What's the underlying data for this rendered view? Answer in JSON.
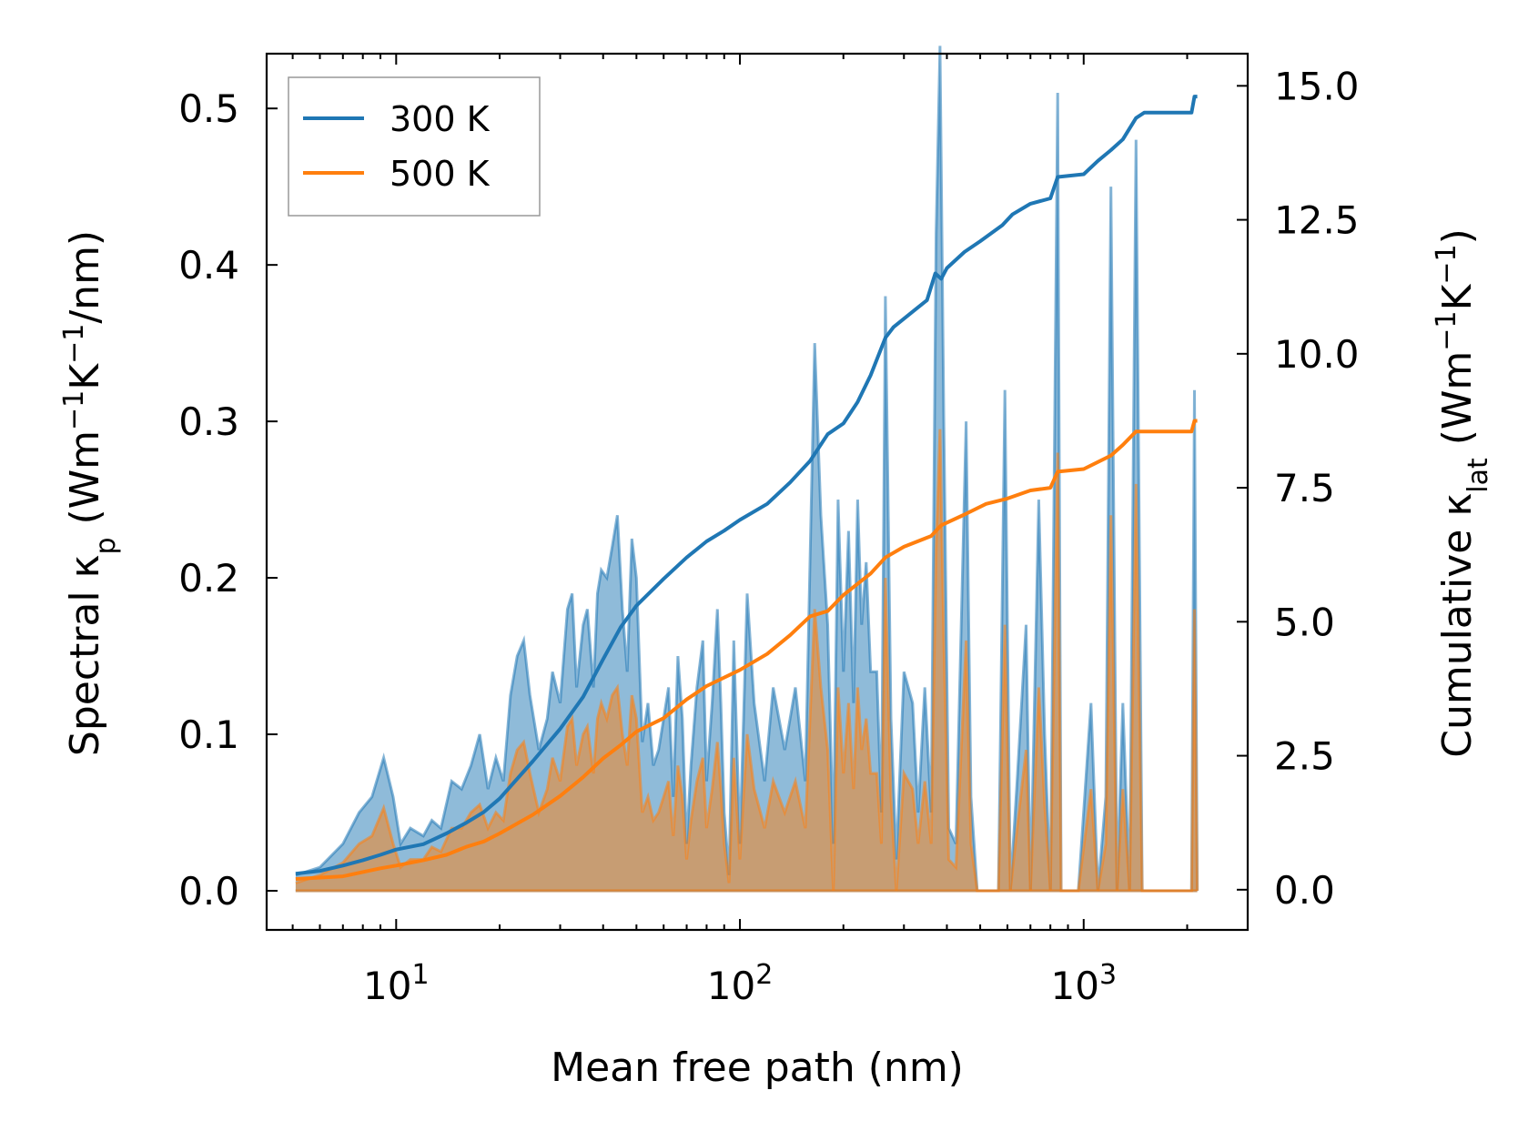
{
  "chart_data": {
    "type": "area",
    "xlabel": "Mean free path (nm)",
    "xscale": "log",
    "xlim": [
      4.2,
      3000
    ],
    "x_ticks": [
      {
        "value": 10,
        "base": "10",
        "exp": "1"
      },
      {
        "value": 100,
        "base": "10",
        "exp": "2"
      },
      {
        "value": 1000,
        "base": "10",
        "exp": "3"
      }
    ],
    "ylabel_left": {
      "main": "Spectral κ",
      "sub": "p",
      "unit_a": " (Wm",
      "exp1": "−1",
      "unit_b": "K",
      "exp2": "−1",
      "unit_c": "/nm)"
    },
    "ylim_left": [
      -0.025,
      0.535
    ],
    "yticks_left": [
      "0.0",
      "0.1",
      "0.2",
      "0.3",
      "0.4",
      "0.5"
    ],
    "ylabel_right": {
      "main": "Cumulative κ",
      "sub": "lat",
      "unit_a": " (Wm",
      "exp1": "−1",
      "unit_b": "K",
      "exp2": "−1",
      "unit_c": ")"
    },
    "ylim_right": [
      -0.75,
      15.6
    ],
    "yticks_right": [
      "0.0",
      "2.5",
      "5.0",
      "7.5",
      "10.0",
      "12.5",
      "15.0"
    ],
    "legend": {
      "position": "top-left",
      "entries": [
        {
          "label": "300 K",
          "color": "#1f77b4"
        },
        {
          "label": "500 K",
          "color": "#ff7f0e"
        }
      ]
    },
    "spectral_300K": {
      "name": "300 K spectral",
      "color": "#1f77b4",
      "points": [
        [
          5.1,
          0.01
        ],
        [
          6,
          0.015
        ],
        [
          7,
          0.03
        ],
        [
          7.8,
          0.05
        ],
        [
          8.5,
          0.06
        ],
        [
          9.2,
          0.085
        ],
        [
          9.8,
          0.06
        ],
        [
          10.3,
          0.03
        ],
        [
          11,
          0.04
        ],
        [
          12,
          0.035
        ],
        [
          12.7,
          0.045
        ],
        [
          13.5,
          0.04
        ],
        [
          14.5,
          0.07
        ],
        [
          15.5,
          0.065
        ],
        [
          16.5,
          0.08
        ],
        [
          17.5,
          0.1
        ],
        [
          18.5,
          0.065
        ],
        [
          19.5,
          0.085
        ],
        [
          20.5,
          0.07
        ],
        [
          21.5,
          0.125
        ],
        [
          22.5,
          0.15
        ],
        [
          23.5,
          0.16
        ],
        [
          24.5,
          0.125
        ],
        [
          26,
          0.09
        ],
        [
          27.5,
          0.11
        ],
        [
          28.5,
          0.14
        ],
        [
          30,
          0.12
        ],
        [
          31.5,
          0.18
        ],
        [
          32.5,
          0.19
        ],
        [
          33.5,
          0.13
        ],
        [
          35,
          0.17
        ],
        [
          36,
          0.18
        ],
        [
          37.5,
          0.13
        ],
        [
          38.5,
          0.19
        ],
        [
          39.5,
          0.205
        ],
        [
          41,
          0.2
        ],
        [
          42.5,
          0.22
        ],
        [
          44,
          0.24
        ],
        [
          45.5,
          0.18
        ],
        [
          47,
          0.14
        ],
        [
          48.5,
          0.225
        ],
        [
          50,
          0.2
        ],
        [
          52,
          0.095
        ],
        [
          54,
          0.12
        ],
        [
          56,
          0.08
        ],
        [
          58,
          0.09
        ],
        [
          60,
          0.11
        ],
        [
          62,
          0.13
        ],
        [
          64,
          0.06
        ],
        [
          66,
          0.15
        ],
        [
          68,
          0.11
        ],
        [
          70,
          0.03
        ],
        [
          72,
          0.08
        ],
        [
          75,
          0.13
        ],
        [
          78,
          0.16
        ],
        [
          80,
          0.07
        ],
        [
          83,
          0.12
        ],
        [
          86,
          0.18
        ],
        [
          88,
          0.12
        ],
        [
          90,
          0.05
        ],
        [
          93,
          0.01
        ],
        [
          96,
          0.16
        ],
        [
          100,
          0.03
        ],
        [
          105,
          0.19
        ],
        [
          110,
          0.12
        ],
        [
          118,
          0.07
        ],
        [
          125,
          0.13
        ],
        [
          135,
          0.09
        ],
        [
          145,
          0.13
        ],
        [
          155,
          0.07
        ],
        [
          165,
          0.35
        ],
        [
          172,
          0.24
        ],
        [
          180,
          0.17
        ],
        [
          187,
          0.03
        ],
        [
          193,
          0.25
        ],
        [
          200,
          0.14
        ],
        [
          207,
          0.23
        ],
        [
          214,
          0.12
        ],
        [
          220,
          0.25
        ],
        [
          226,
          0.17
        ],
        [
          233,
          0.21
        ],
        [
          240,
          0.14
        ],
        [
          250,
          0.14
        ],
        [
          258,
          0.05
        ],
        [
          265,
          0.38
        ],
        [
          275,
          0.11
        ],
        [
          285,
          0.02
        ],
        [
          300,
          0.14
        ],
        [
          318,
          0.12
        ],
        [
          330,
          0.05
        ],
        [
          345,
          0.13
        ],
        [
          360,
          0.05
        ],
        [
          372,
          0.42
        ],
        [
          382,
          0.54
        ],
        [
          392,
          0.3
        ],
        [
          405,
          0.04
        ],
        [
          425,
          0.03
        ],
        [
          455,
          0.3
        ],
        [
          470,
          0.06
        ],
        [
          490,
          0.0
        ],
        [
          515,
          0.0
        ],
        [
          545,
          0.0
        ],
        [
          565,
          0.0
        ],
        [
          590,
          0.32
        ],
        [
          612,
          0.0
        ],
        [
          640,
          0.07
        ],
        [
          680,
          0.17
        ],
        [
          700,
          0.0
        ],
        [
          740,
          0.25
        ],
        [
          770,
          0.1
        ],
        [
          800,
          0.0
        ],
        [
          840,
          0.51
        ],
        [
          860,
          0.0
        ],
        [
          905,
          0.0
        ],
        [
          965,
          0.0
        ],
        [
          1050,
          0.12
        ],
        [
          1100,
          0.0
        ],
        [
          1160,
          0.06
        ],
        [
          1200,
          0.45
        ],
        [
          1250,
          0.0
        ],
        [
          1300,
          0.12
        ],
        [
          1360,
          0.0
        ],
        [
          1420,
          0.48
        ],
        [
          1480,
          0.0
        ],
        [
          1550,
          0.0
        ],
        [
          2060,
          0.0
        ],
        [
          2100,
          0.32
        ],
        [
          2140,
          0.0
        ]
      ]
    },
    "spectral_500K": {
      "name": "500 K spectral",
      "color": "#ff7f0e",
      "points": [
        [
          5.1,
          0.005
        ],
        [
          6,
          0.01
        ],
        [
          7,
          0.018
        ],
        [
          7.8,
          0.03
        ],
        [
          8.5,
          0.035
        ],
        [
          9.2,
          0.053
        ],
        [
          9.8,
          0.03
        ],
        [
          10.3,
          0.015
        ],
        [
          11,
          0.02
        ],
        [
          12,
          0.02
        ],
        [
          12.7,
          0.028
        ],
        [
          13.5,
          0.025
        ],
        [
          14.5,
          0.04
        ],
        [
          15.5,
          0.04
        ],
        [
          16.5,
          0.05
        ],
        [
          17.5,
          0.055
        ],
        [
          18.5,
          0.04
        ],
        [
          19.5,
          0.05
        ],
        [
          20.5,
          0.045
        ],
        [
          21.5,
          0.075
        ],
        [
          22.5,
          0.09
        ],
        [
          23.5,
          0.095
        ],
        [
          24.5,
          0.075
        ],
        [
          26,
          0.05
        ],
        [
          27.5,
          0.065
        ],
        [
          28.5,
          0.085
        ],
        [
          30,
          0.07
        ],
        [
          31.5,
          0.105
        ],
        [
          32.5,
          0.11
        ],
        [
          33.5,
          0.08
        ],
        [
          35,
          0.1
        ],
        [
          36,
          0.105
        ],
        [
          37.5,
          0.075
        ],
        [
          38.5,
          0.11
        ],
        [
          39.5,
          0.12
        ],
        [
          41,
          0.11
        ],
        [
          42.5,
          0.125
        ],
        [
          44,
          0.13
        ],
        [
          45.5,
          0.1
        ],
        [
          47,
          0.08
        ],
        [
          48.5,
          0.125
        ],
        [
          50,
          0.11
        ],
        [
          52,
          0.05
        ],
        [
          54,
          0.06
        ],
        [
          56,
          0.045
        ],
        [
          58,
          0.05
        ],
        [
          60,
          0.06
        ],
        [
          62,
          0.07
        ],
        [
          64,
          0.035
        ],
        [
          66,
          0.08
        ],
        [
          68,
          0.06
        ],
        [
          70,
          0.02
        ],
        [
          72,
          0.045
        ],
        [
          75,
          0.07
        ],
        [
          78,
          0.085
        ],
        [
          80,
          0.04
        ],
        [
          83,
          0.065
        ],
        [
          86,
          0.095
        ],
        [
          88,
          0.065
        ],
        [
          90,
          0.03
        ],
        [
          93,
          0.005
        ],
        [
          96,
          0.085
        ],
        [
          100,
          0.02
        ],
        [
          105,
          0.1
        ],
        [
          110,
          0.065
        ],
        [
          118,
          0.04
        ],
        [
          125,
          0.07
        ],
        [
          135,
          0.05
        ],
        [
          145,
          0.07
        ],
        [
          155,
          0.04
        ],
        [
          165,
          0.18
        ],
        [
          172,
          0.13
        ],
        [
          180,
          0.09
        ],
        [
          187,
          0.0
        ],
        [
          193,
          0.13
        ],
        [
          200,
          0.075
        ],
        [
          207,
          0.12
        ],
        [
          214,
          0.065
        ],
        [
          220,
          0.13
        ],
        [
          226,
          0.09
        ],
        [
          233,
          0.11
        ],
        [
          240,
          0.075
        ],
        [
          250,
          0.075
        ],
        [
          258,
          0.03
        ],
        [
          265,
          0.2
        ],
        [
          275,
          0.06
        ],
        [
          285,
          0.0
        ],
        [
          300,
          0.075
        ],
        [
          318,
          0.065
        ],
        [
          330,
          0.03
        ],
        [
          345,
          0.07
        ],
        [
          360,
          0.03
        ],
        [
          372,
          0.22
        ],
        [
          382,
          0.295
        ],
        [
          392,
          0.16
        ],
        [
          405,
          0.02
        ],
        [
          425,
          0.015
        ],
        [
          455,
          0.16
        ],
        [
          470,
          0.03
        ],
        [
          490,
          0.0
        ],
        [
          515,
          0.0
        ],
        [
          545,
          0.0
        ],
        [
          565,
          0.0
        ],
        [
          590,
          0.17
        ],
        [
          612,
          0.0
        ],
        [
          640,
          0.04
        ],
        [
          680,
          0.09
        ],
        [
          700,
          0.0
        ],
        [
          740,
          0.13
        ],
        [
          770,
          0.055
        ],
        [
          800,
          0.0
        ],
        [
          840,
          0.28
        ],
        [
          860,
          0.0
        ],
        [
          905,
          0.0
        ],
        [
          965,
          0.0
        ],
        [
          1050,
          0.065
        ],
        [
          1100,
          0.0
        ],
        [
          1160,
          0.03
        ],
        [
          1200,
          0.24
        ],
        [
          1250,
          0.0
        ],
        [
          1300,
          0.065
        ],
        [
          1360,
          0.0
        ],
        [
          1420,
          0.26
        ],
        [
          1480,
          0.0
        ],
        [
          1550,
          0.0
        ],
        [
          2060,
          0.0
        ],
        [
          2100,
          0.18
        ],
        [
          2140,
          0.0
        ]
      ]
    },
    "cumulative_300K": {
      "name": "300 K",
      "color": "#1f77b4",
      "points": [
        [
          5.1,
          0.3
        ],
        [
          6,
          0.35
        ],
        [
          7,
          0.45
        ],
        [
          8,
          0.55
        ],
        [
          9,
          0.65
        ],
        [
          10,
          0.75
        ],
        [
          12,
          0.85
        ],
        [
          14,
          1.05
        ],
        [
          16,
          1.25
        ],
        [
          18,
          1.45
        ],
        [
          20,
          1.7
        ],
        [
          25,
          2.4
        ],
        [
          30,
          3.0
        ],
        [
          35,
          3.6
        ],
        [
          40,
          4.3
        ],
        [
          45,
          4.9
        ],
        [
          50,
          5.3
        ],
        [
          60,
          5.8
        ],
        [
          70,
          6.2
        ],
        [
          80,
          6.5
        ],
        [
          90,
          6.7
        ],
        [
          100,
          6.9
        ],
        [
          120,
          7.2
        ],
        [
          140,
          7.6
        ],
        [
          160,
          8.0
        ],
        [
          180,
          8.5
        ],
        [
          200,
          8.7
        ],
        [
          220,
          9.1
        ],
        [
          240,
          9.6
        ],
        [
          265,
          10.3
        ],
        [
          280,
          10.5
        ],
        [
          320,
          10.8
        ],
        [
          350,
          11.0
        ],
        [
          370,
          11.5
        ],
        [
          385,
          11.4
        ],
        [
          400,
          11.6
        ],
        [
          450,
          11.9
        ],
        [
          500,
          12.1
        ],
        [
          580,
          12.4
        ],
        [
          620,
          12.6
        ],
        [
          700,
          12.8
        ],
        [
          800,
          12.9
        ],
        [
          840,
          13.3
        ],
        [
          1000,
          13.35
        ],
        [
          1100,
          13.6
        ],
        [
          1200,
          13.8
        ],
        [
          1300,
          14.0
        ],
        [
          1420,
          14.4
        ],
        [
          1500,
          14.5
        ],
        [
          2060,
          14.5
        ],
        [
          2100,
          14.8
        ],
        [
          2140,
          14.8
        ]
      ]
    },
    "cumulative_500K": {
      "name": "500 K",
      "color": "#ff7f0e",
      "points": [
        [
          5.1,
          0.2
        ],
        [
          7,
          0.25
        ],
        [
          9,
          0.4
        ],
        [
          10,
          0.45
        ],
        [
          12,
          0.55
        ],
        [
          14,
          0.65
        ],
        [
          16,
          0.8
        ],
        [
          18,
          0.9
        ],
        [
          20,
          1.05
        ],
        [
          25,
          1.4
        ],
        [
          30,
          1.75
        ],
        [
          35,
          2.1
        ],
        [
          40,
          2.45
        ],
        [
          45,
          2.7
        ],
        [
          50,
          2.95
        ],
        [
          60,
          3.2
        ],
        [
          70,
          3.55
        ],
        [
          80,
          3.8
        ],
        [
          100,
          4.1
        ],
        [
          120,
          4.4
        ],
        [
          140,
          4.75
        ],
        [
          160,
          5.1
        ],
        [
          180,
          5.2
        ],
        [
          200,
          5.5
        ],
        [
          240,
          5.9
        ],
        [
          265,
          6.2
        ],
        [
          300,
          6.4
        ],
        [
          360,
          6.6
        ],
        [
          385,
          6.8
        ],
        [
          450,
          7.0
        ],
        [
          520,
          7.2
        ],
        [
          600,
          7.3
        ],
        [
          700,
          7.45
        ],
        [
          800,
          7.5
        ],
        [
          840,
          7.8
        ],
        [
          1000,
          7.85
        ],
        [
          1200,
          8.1
        ],
        [
          1300,
          8.3
        ],
        [
          1420,
          8.55
        ],
        [
          1500,
          8.55
        ],
        [
          2060,
          8.55
        ],
        [
          2100,
          8.75
        ],
        [
          2140,
          8.75
        ]
      ]
    }
  }
}
